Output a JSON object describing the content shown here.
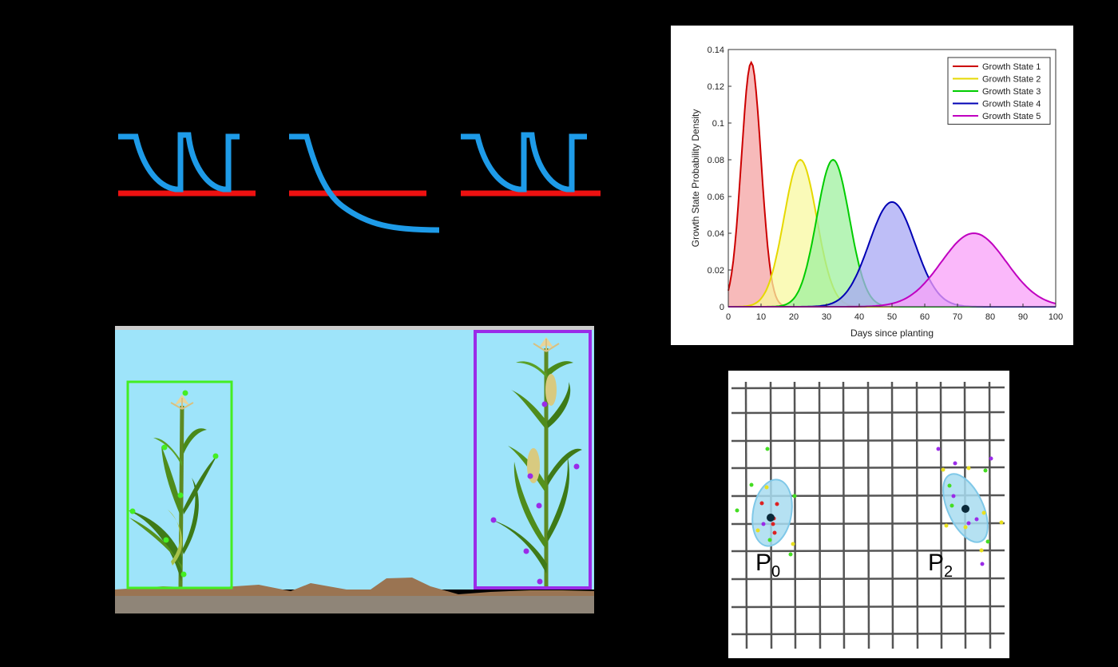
{
  "signal_strip": {
    "line_color": "#1e9be8",
    "baseline_color": "#ee1111"
  },
  "chart_data": {
    "type": "area",
    "xlabel": "Days since planting",
    "ylabel": "Growth State Probability Density",
    "xlim": [
      0,
      100
    ],
    "ylim": [
      0,
      0.14
    ],
    "x_ticks": [
      "0",
      "10",
      "20",
      "30",
      "40",
      "50",
      "60",
      "70",
      "80",
      "90",
      "100"
    ],
    "y_ticks": [
      "0",
      "0.02",
      "0.04",
      "0.06",
      "0.08",
      "0.1",
      "0.12",
      "0.14"
    ],
    "legend_position": "top-right",
    "grid": false,
    "series": [
      {
        "name": "Growth State 1",
        "mean": 7,
        "peak": 0.133,
        "color": "#cc0000",
        "fill": "#f4a3a3"
      },
      {
        "name": "Growth State 2",
        "mean": 22,
        "peak": 0.08,
        "color": "#e6d800",
        "fill": "#f8f8a0"
      },
      {
        "name": "Growth State 3",
        "mean": 32,
        "peak": 0.08,
        "color": "#00cc00",
        "fill": "#9ff09f"
      },
      {
        "name": "Growth State 4",
        "mean": 50,
        "peak": 0.057,
        "color": "#0000b4",
        "fill": "#a8a8f4"
      },
      {
        "name": "Growth State 5",
        "mean": 75,
        "peak": 0.04,
        "color": "#c000c0",
        "fill": "#f8a0f8"
      }
    ]
  },
  "field_scene": {
    "sky_color": "#9ee4fa",
    "soil_color": "#9a7452",
    "young_plant_box_color": "#44ee22",
    "mature_plant_box_color": "#9a2be8"
  },
  "grid_map": {
    "labels": [
      {
        "main": "P",
        "sub": "0"
      },
      {
        "main": "P",
        "sub": "2"
      }
    ],
    "ellipse_color": "#a8dcf0"
  }
}
